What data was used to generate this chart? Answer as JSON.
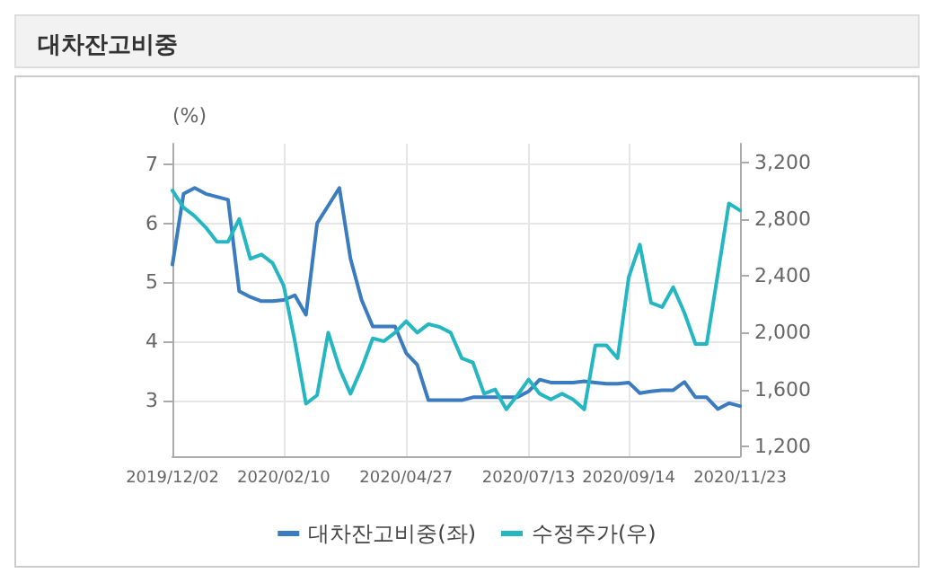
{
  "chart_data": {
    "type": "line",
    "title": "대차잔고비중",
    "ylabel": "(%)",
    "categories": [
      "2019/12/02",
      null,
      null,
      null,
      null,
      null,
      null,
      null,
      null,
      null,
      "2020/02/10",
      null,
      null,
      null,
      null,
      null,
      null,
      null,
      null,
      null,
      null,
      "2020/04/27",
      null,
      null,
      null,
      null,
      null,
      null,
      null,
      null,
      null,
      null,
      "2020/07/13",
      null,
      null,
      null,
      null,
      null,
      null,
      null,
      null,
      "2020/09/14",
      null,
      null,
      null,
      null,
      null,
      null,
      null,
      null,
      null,
      "2020/11/23"
    ],
    "series": [
      {
        "name": "대차잔고비중(좌)",
        "color": "#3b7bbf",
        "values": [
          5.3,
          6.5,
          6.6,
          6.5,
          6.45,
          6.4,
          4.85,
          4.75,
          4.68,
          4.68,
          4.7,
          4.78,
          4.45,
          6.0,
          6.3,
          6.6,
          5.4,
          4.7,
          4.25,
          4.25,
          4.25,
          3.8,
          3.6,
          3.0,
          3.0,
          3.0,
          3.0,
          3.05,
          3.05,
          3.05,
          3.05,
          3.05,
          3.15,
          3.35,
          3.3,
          3.3,
          3.3,
          3.32,
          3.3,
          3.28,
          3.28,
          3.3,
          3.12,
          3.15,
          3.17,
          3.17,
          3.31,
          3.05,
          3.05,
          2.85,
          2.95,
          2.9
        ]
      },
      {
        "name": "수정주가(우)",
        "color": "#25b7c1",
        "axis": "y2",
        "values": [
          3000,
          2880,
          2820,
          2740,
          2640,
          2640,
          2800,
          2520,
          2550,
          2490,
          2330,
          1940,
          1500,
          1560,
          2000,
          1750,
          1570,
          1750,
          1960,
          1940,
          2000,
          2080,
          2000,
          2060,
          2040,
          2000,
          1820,
          1790,
          1570,
          1600,
          1460,
          1560,
          1670,
          1570,
          1530,
          1570,
          1530,
          1460,
          1910,
          1910,
          1820,
          2390,
          2620,
          2210,
          2180,
          2320,
          2140,
          1920,
          1920,
          2410,
          2910,
          2860
        ]
      }
    ],
    "ylim": [
      2.05,
      7.35
    ],
    "yticks": [
      3,
      4,
      5,
      6,
      7
    ],
    "y2lim": [
      1130,
      3330
    ],
    "y2ticks": [
      {
        "value": 1200,
        "label": "1,200"
      },
      {
        "value": 1600,
        "label": "1,600"
      },
      {
        "value": 2000,
        "label": "2,000"
      },
      {
        "value": 2400,
        "label": "2,400"
      },
      {
        "value": 2800,
        "label": "2,800"
      },
      {
        "value": 3200,
        "label": "3,200"
      }
    ],
    "grid": true,
    "legend": "bottom",
    "marker": "none",
    "line_style": "solid"
  }
}
